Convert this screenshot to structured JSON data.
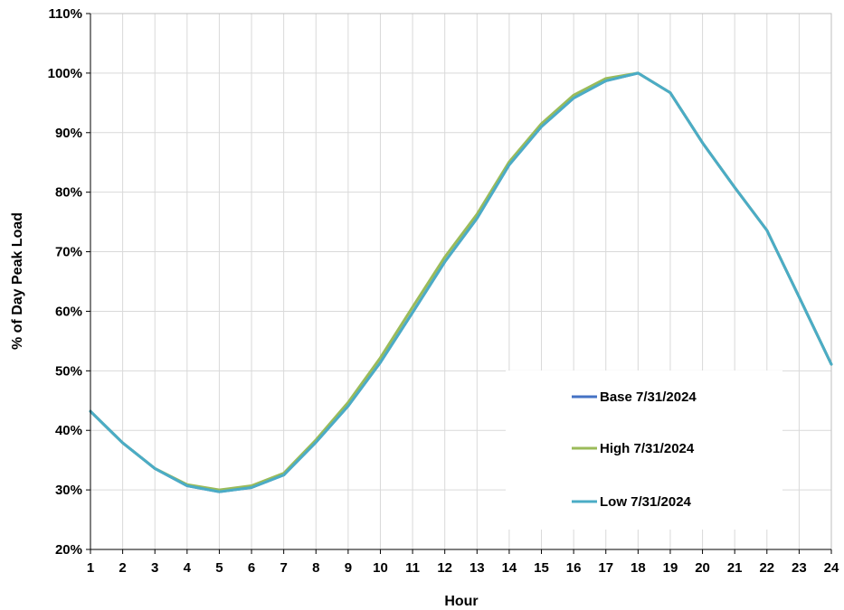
{
  "chart_data": {
    "type": "line",
    "title": "",
    "xlabel": "Hour",
    "ylabel": "% of Day Peak Load",
    "x": [
      1,
      2,
      3,
      4,
      5,
      6,
      7,
      8,
      9,
      10,
      11,
      12,
      13,
      14,
      15,
      16,
      17,
      18,
      19,
      20,
      21,
      22,
      23,
      24
    ],
    "x_ticks": [
      "1",
      "2",
      "3",
      "4",
      "5",
      "6",
      "7",
      "8",
      "9",
      "10",
      "11",
      "12",
      "13",
      "14",
      "15",
      "16",
      "17",
      "18",
      "19",
      "20",
      "21",
      "22",
      "23",
      "24"
    ],
    "xlim": [
      1,
      24
    ],
    "ylim": [
      20,
      110
    ],
    "y_ticks": [
      20,
      30,
      40,
      50,
      60,
      70,
      80,
      90,
      100,
      110
    ],
    "y_tick_labels": [
      "20%",
      "30%",
      "40%",
      "50%",
      "60%",
      "70%",
      "80%",
      "90%",
      "100%",
      "110%"
    ],
    "grid": true,
    "legend_position": "lower-right",
    "series": [
      {
        "name": "Base 7/31/2024",
        "color": "#4472C4",
        "values": [
          43.2,
          37.9,
          33.6,
          30.7,
          29.7,
          30.4,
          32.5,
          38.0,
          44.1,
          51.4,
          59.8,
          68.3,
          75.6,
          84.6,
          91.0,
          95.8,
          98.7,
          100.0,
          96.7,
          88.3,
          80.8,
          73.6,
          62.4,
          51.1
        ]
      },
      {
        "name": "High 7/31/2024",
        "color": "#9BBB59",
        "values": [
          43.2,
          37.9,
          33.6,
          30.9,
          30.0,
          30.7,
          32.8,
          38.4,
          44.7,
          52.2,
          60.7,
          69.1,
          76.3,
          85.1,
          91.5,
          96.3,
          99.1,
          100.0,
          96.7,
          88.3,
          80.8,
          73.6,
          62.4,
          51.1
        ]
      },
      {
        "name": "Low 7/31/2024",
        "color": "#4BACC6",
        "values": [
          43.2,
          37.9,
          33.6,
          30.7,
          29.7,
          30.4,
          32.5,
          38.0,
          44.1,
          51.4,
          59.8,
          68.3,
          75.6,
          84.6,
          91.0,
          95.8,
          98.7,
          100.0,
          96.7,
          88.3,
          80.8,
          73.6,
          62.4,
          51.1
        ]
      }
    ]
  }
}
